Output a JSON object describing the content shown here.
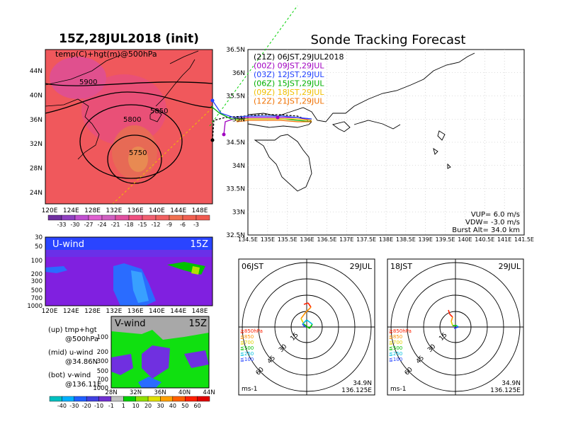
{
  "map": {
    "title": "15Z,28JUL2018 (init)",
    "field_label": "temp(C)+hgt(m)@500hPa",
    "lat_labels": [
      "44N",
      "40N",
      "36N",
      "32N",
      "28N",
      "24N"
    ],
    "lon_labels": [
      "120E",
      "124E",
      "128E",
      "132E",
      "136E",
      "140E",
      "144E",
      "148E"
    ],
    "contour_labels": [
      "5900",
      "5850",
      "5800",
      "5750"
    ],
    "colorbar_labels": [
      "-33",
      "-30",
      "-27",
      "-24",
      "-21",
      "-18",
      "-15",
      "-12",
      "-9",
      "-6",
      "-3"
    ],
    "colorbar_colors": [
      "#7030a0",
      "#9040c0",
      "#c050d0",
      "#e060d0",
      "#d060c0",
      "#e050a0",
      "#f05080",
      "#f06070",
      "#f06060",
      "#f07050",
      "#f06050",
      "#f05a50"
    ]
  },
  "uwind": {
    "label": "U-wind",
    "time": "15Z",
    "y_labels": [
      "30",
      "50",
      "100",
      "200",
      "300",
      "500",
      "700",
      "1000"
    ],
    "x_labels": [
      "120E",
      "124E",
      "128E",
      "132E",
      "136E",
      "140E",
      "144E",
      "148E"
    ]
  },
  "vwind": {
    "label": "V-wind",
    "time": "15Z",
    "y_labels": [
      "100",
      "200",
      "300",
      "500",
      "700",
      "1000"
    ],
    "x_labels": [
      "28N",
      "32N",
      "36N",
      "40N",
      "44N"
    ],
    "colorbar_labels": [
      "-40",
      "-30",
      "-20",
      "-10",
      "-1",
      "1",
      "10",
      "20",
      "30",
      "40",
      "50",
      "60"
    ],
    "colorbar_colors": [
      "#00c0c0",
      "#00b0ff",
      "#2060ff",
      "#4040e0",
      "#7030d0",
      "#c0c0c0",
      "#00d000",
      "#90e000",
      "#e0e000",
      "#ffa000",
      "#ff6000",
      "#ff2000",
      "#e00000"
    ]
  },
  "legend_notes": [
    {
      "a": "(up) tmp+hgt",
      "b": "@500hPa"
    },
    {
      "a": "(mid) u-wind",
      "b": "@34.86N"
    },
    {
      "a": "(bot) v-wind",
      "b": "@136.11E"
    }
  ],
  "tracking": {
    "title": "Sonde Tracking Forecast",
    "lat_labels": [
      "36.5N",
      "36N",
      "35.5N",
      "35N",
      "34.5N",
      "34N",
      "33.5N",
      "33N",
      "32.5N"
    ],
    "lon_labels": [
      "134.5E",
      "135E",
      "135.5E",
      "136E",
      "136.5E",
      "137E",
      "137.5E",
      "138E",
      "138.5E",
      "139E",
      "139.5E",
      "140E",
      "140.5E",
      "141E",
      "141.5E"
    ],
    "launch_times": [
      {
        "text": "(21Z)  06JST,29JUL2018",
        "color": "#000000"
      },
      {
        "text": "(00Z)  09JST,29JUL",
        "color": "#a000c0"
      },
      {
        "text": "(03Z)  12JST,29JUL",
        "color": "#2040ff"
      },
      {
        "text": "(06Z)  15JST,29JUL",
        "color": "#00b000"
      },
      {
        "text": "(09Z)  18JST,29JUL",
        "color": "#f0c000"
      },
      {
        "text": "(12Z)  21JST,29JUL",
        "color": "#f07000"
      }
    ],
    "params": [
      "VUP=  6.0  m/s",
      "VDW= -3.0  m/s",
      "Burst Alt=  34.0  km"
    ]
  },
  "hodo_left": {
    "time": "06JST",
    "date": "29JUL",
    "rings": [
      "15",
      "30",
      "45",
      "60"
    ],
    "levels": [
      {
        "text": "≧850hPa",
        "color": "#ff2000"
      },
      {
        "text": "≦850",
        "color": "#ff9000"
      },
      {
        "text": "≦700",
        "color": "#e0d000"
      },
      {
        "text": "≦500",
        "color": "#00c000"
      },
      {
        "text": "≦250",
        "color": "#00c0e0"
      },
      {
        "text": "≦100",
        "color": "#2040ff"
      }
    ],
    "unit": "ms-1",
    "lat": "34.9N",
    "lon": "136.125E"
  },
  "hodo_right": {
    "time": "18JST",
    "date": "29JUL",
    "rings": [
      "15",
      "30",
      "45",
      "60"
    ],
    "levels": [
      {
        "text": "≧850hPa",
        "color": "#ff2000"
      },
      {
        "text": "≦850",
        "color": "#ff9000"
      },
      {
        "text": "≦700",
        "color": "#e0d000"
      },
      {
        "text": "≦500",
        "color": "#00c000"
      },
      {
        "text": "≦250",
        "color": "#00c0e0"
      },
      {
        "text": "≦100",
        "color": "#2040ff"
      }
    ],
    "unit": "ms-1",
    "lat": "34.9N",
    "lon": "136.125E"
  }
}
